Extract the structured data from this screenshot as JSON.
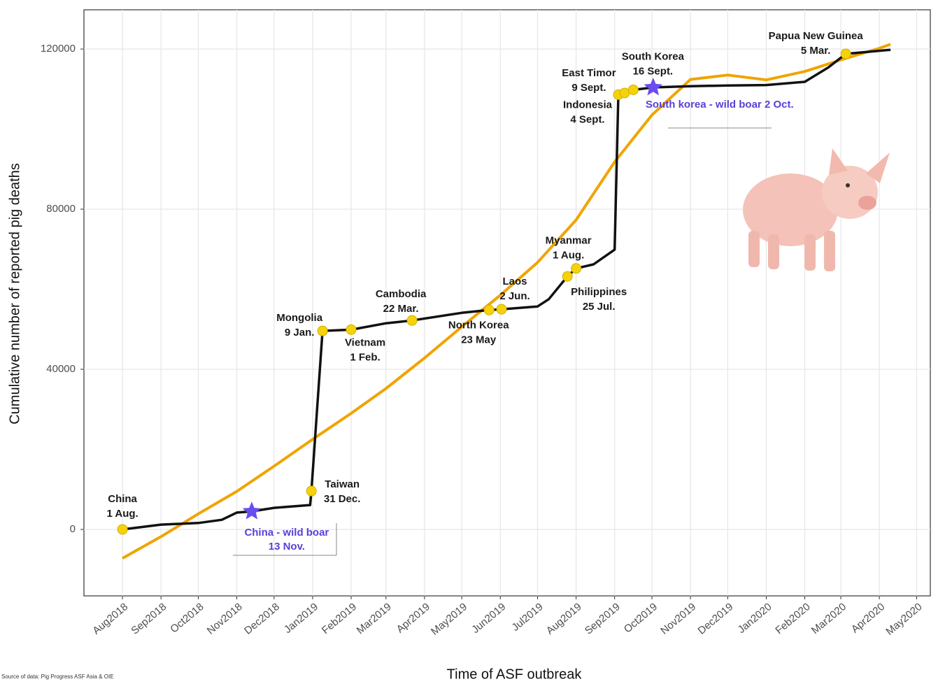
{
  "chart_data": {
    "type": "line",
    "x_label": "Time of ASF outbreak",
    "y_label": "Cumulative number of reported pig deaths",
    "source": "Source of data: Pig Progress ASF Asia & OIE",
    "xlim": [
      "2018-07-01",
      "2020-05-12"
    ],
    "ylim": [
      -16600,
      129800
    ],
    "xticks": [
      {
        "value": "2018-08-01",
        "label": "Aug2018"
      },
      {
        "value": "2018-09-01",
        "label": "Sep2018"
      },
      {
        "value": "2018-10-01",
        "label": "Oct2018"
      },
      {
        "value": "2018-11-01",
        "label": "Nov2018"
      },
      {
        "value": "2018-12-01",
        "label": "Dec2018"
      },
      {
        "value": "2019-01-01",
        "label": "Jan2019"
      },
      {
        "value": "2019-02-01",
        "label": "Feb2019"
      },
      {
        "value": "2019-03-01",
        "label": "Mar2019"
      },
      {
        "value": "2019-04-01",
        "label": "Apr2019"
      },
      {
        "value": "2019-05-01",
        "label": "May2019"
      },
      {
        "value": "2019-06-01",
        "label": "Jun2019"
      },
      {
        "value": "2019-07-01",
        "label": "Jul2019"
      },
      {
        "value": "2019-08-01",
        "label": "Aug2019"
      },
      {
        "value": "2019-09-01",
        "label": "Sep2019"
      },
      {
        "value": "2019-10-01",
        "label": "Oct2019"
      },
      {
        "value": "2019-11-01",
        "label": "Nov2019"
      },
      {
        "value": "2019-12-01",
        "label": "Dec2019"
      },
      {
        "value": "2020-01-01",
        "label": "Jan2020"
      },
      {
        "value": "2020-02-01",
        "label": "Feb2020"
      },
      {
        "value": "2020-03-01",
        "label": "Mar2020"
      },
      {
        "value": "2020-04-01",
        "label": "Apr2020"
      },
      {
        "value": "2020-05-01",
        "label": "May2020"
      }
    ],
    "yticks": [
      0,
      40000,
      80000,
      120000
    ],
    "grid": true,
    "series": [
      {
        "color": "#f0a400",
        "x": [
          "2018-08-01",
          "2018-09-01",
          "2018-10-01",
          "2018-11-01",
          "2018-12-01",
          "2019-01-01",
          "2019-02-01",
          "2019-03-01",
          "2019-04-01",
          "2019-05-01",
          "2019-06-01",
          "2019-07-01",
          "2019-08-01",
          "2019-09-01",
          "2019-10-01",
          "2019-11-01",
          "2019-12-01",
          "2020-01-01",
          "2020-02-01",
          "2020-03-01",
          "2020-04-01",
          "2020-04-10"
        ],
        "values": [
          -7200,
          -1800,
          3900,
          9500,
          15800,
          22500,
          29000,
          35200,
          42800,
          50600,
          58500,
          66700,
          77300,
          91800,
          103500,
          112400,
          113500,
          112300,
          114400,
          117300,
          120200,
          121200
        ]
      },
      {
        "color": "#111111",
        "x": [
          "2018-08-01",
          "2018-09-01",
          "2018-10-01",
          "2018-10-20",
          "2018-11-01",
          "2018-11-13",
          "2018-12-01",
          "2018-12-30",
          "2018-12-31",
          "2019-01-09",
          "2019-02-01",
          "2019-03-01",
          "2019-03-22",
          "2019-05-01",
          "2019-05-23",
          "2019-06-02",
          "2019-07-01",
          "2019-07-10",
          "2019-07-25",
          "2019-08-01",
          "2019-08-15",
          "2019-09-01",
          "2019-09-04",
          "2019-09-09",
          "2019-09-16",
          "2019-10-02",
          "2019-11-01",
          "2019-12-01",
          "2020-01-01",
          "2020-02-01",
          "2020-02-20",
          "2020-03-05",
          "2020-04-10"
        ],
        "values": [
          0,
          1200,
          1600,
          2400,
          4200,
          4500,
          5400,
          6100,
          9600,
          49600,
          49900,
          51500,
          52200,
          54100,
          54800,
          55000,
          55700,
          57500,
          63200,
          65200,
          66200,
          69900,
          108600,
          109000,
          109800,
          110400,
          110700,
          110900,
          111000,
          111800,
          115400,
          118800,
          119800
        ]
      }
    ],
    "events": {
      "color": "#f5d20a",
      "items": [
        {
          "name": "China",
          "date_label": "1 Aug.",
          "x": "2018-08-01",
          "value": 0
        },
        {
          "name": "Taiwan",
          "date_label": "31 Dec.",
          "x": "2018-12-31",
          "value": 9600
        },
        {
          "name": "Mongolia",
          "date_label": "9 Jan.",
          "x": "2019-01-09",
          "value": 49600
        },
        {
          "name": "Vietnam",
          "date_label": "1 Feb.",
          "x": "2019-02-01",
          "value": 49900
        },
        {
          "name": "Cambodia",
          "date_label": "22 Mar.",
          "x": "2019-03-22",
          "value": 52200
        },
        {
          "name": "North Korea",
          "date_label": "23 May",
          "x": "2019-05-23",
          "value": 54800
        },
        {
          "name": "Laos",
          "date_label": "2 Jun.",
          "x": "2019-06-02",
          "value": 55000
        },
        {
          "name": "Philippines",
          "date_label": "25 Jul.",
          "x": "2019-07-25",
          "value": 63200
        },
        {
          "name": "Myanmar",
          "date_label": "1 Aug.",
          "x": "2019-08-01",
          "value": 65200
        },
        {
          "name": "Indonesia",
          "date_label": "4 Sept.",
          "x": "2019-09-04",
          "value": 108600
        },
        {
          "name": "East Timor",
          "date_label": "9 Sept.",
          "x": "2019-09-09",
          "value": 109000
        },
        {
          "name": "South Korea",
          "date_label": "16 Sept.",
          "x": "2019-09-16",
          "value": 109800
        },
        {
          "name": "Papua New Guinea",
          "date_label": "5 Mar.",
          "x": "2020-03-05",
          "value": 118800
        }
      ]
    },
    "wild_boar": {
      "color": "#6a4cf0",
      "text_color": "#5b3fd6",
      "items": [
        {
          "name": "China - wild boar",
          "date_label": "13 Nov.",
          "x": "2018-11-13",
          "value": 4500
        },
        {
          "name": "South korea - wild boar 2 Oct.",
          "date_label": null,
          "x": "2019-10-02",
          "value": 110400
        }
      ]
    }
  }
}
